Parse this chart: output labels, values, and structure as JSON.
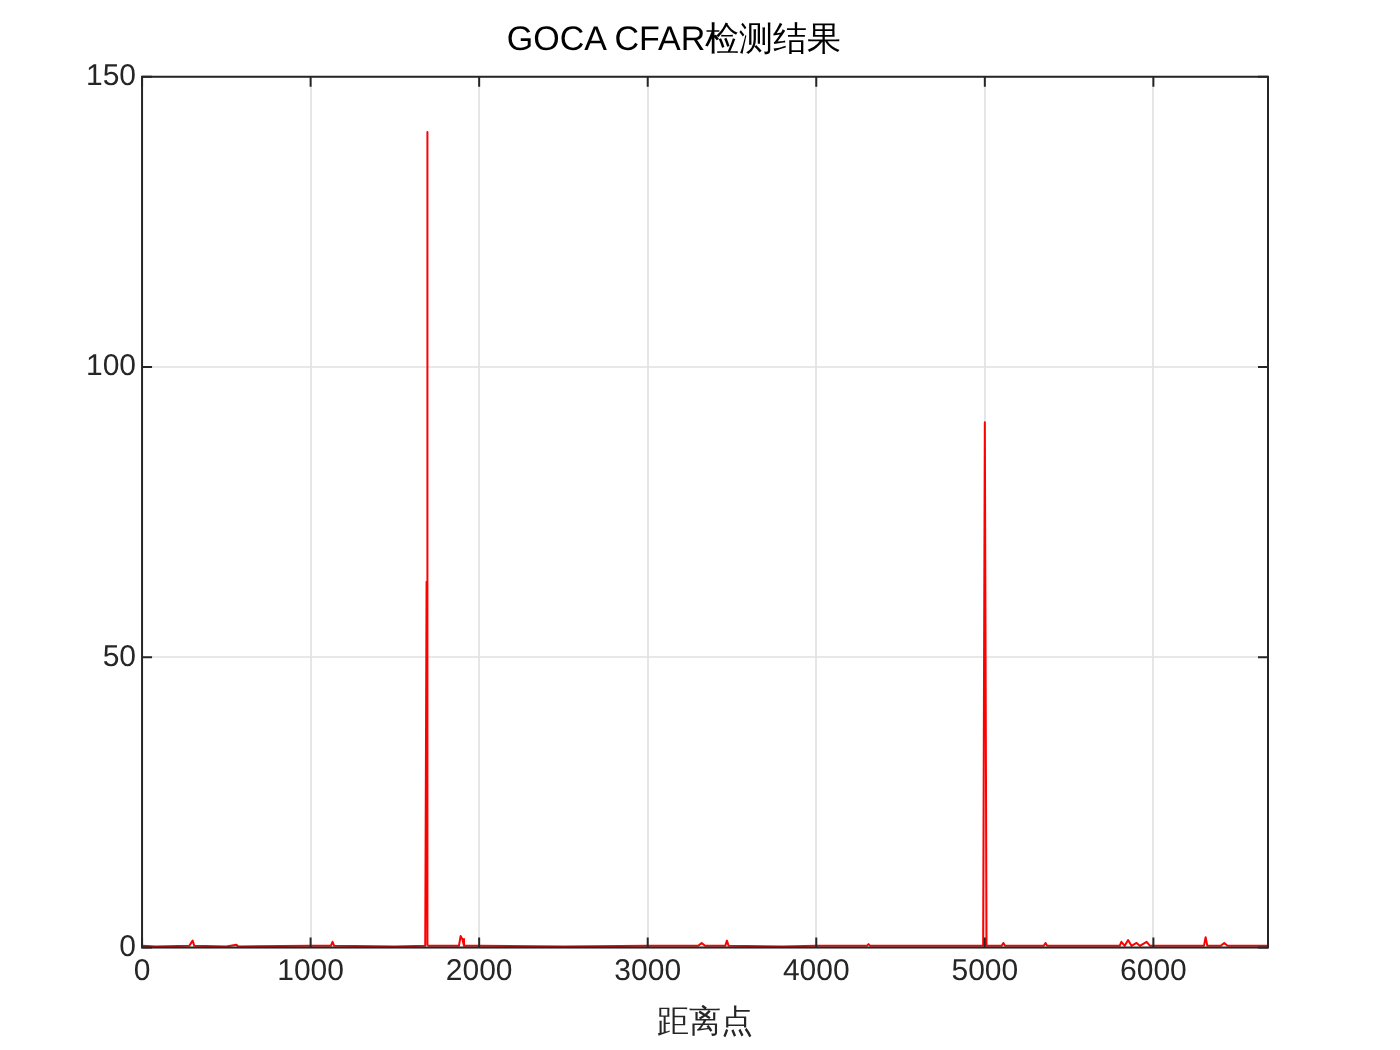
{
  "chart_data": {
    "type": "line",
    "title": "GOCA CFAR检测结果",
    "xlabel": "距离点",
    "series": [
      {
        "color": "#ff0000",
        "x": [
          0,
          80,
          280,
          300,
          310,
          500,
          560,
          570,
          1000,
          1120,
          1130,
          1140,
          1500,
          1680,
          1688,
          1692,
          1694,
          1700,
          1880,
          1890,
          1900,
          1910,
          2000,
          2500,
          3000,
          3300,
          3320,
          3340,
          3460,
          3470,
          3480,
          3800,
          4000,
          4300,
          4310,
          4320,
          4990,
          5000,
          5010,
          5100,
          5110,
          5120,
          5350,
          5360,
          5370,
          5800,
          5810,
          5830,
          5850,
          5870,
          5900,
          5920,
          5960,
          5980,
          6300,
          6310,
          6320,
          6400,
          6420,
          6440,
          6680
        ],
        "values": [
          0.3,
          0.2,
          0.3,
          1.2,
          0.3,
          0.2,
          0.5,
          0.2,
          0.3,
          0.3,
          1.0,
          0.3,
          0.2,
          0.3,
          63,
          140.5,
          0.5,
          0.3,
          0.3,
          2.0,
          1.5,
          0.3,
          0.3,
          0.2,
          0.3,
          0.3,
          0.8,
          0.3,
          0.3,
          1.2,
          0.3,
          0.2,
          0.3,
          0.3,
          0.6,
          0.3,
          0.3,
          90.5,
          0.3,
          0.3,
          0.8,
          0.3,
          0.3,
          0.8,
          0.3,
          0.3,
          1.0,
          0.3,
          1.3,
          0.3,
          0.8,
          0.3,
          1.0,
          0.3,
          0.3,
          1.8,
          0.3,
          0.3,
          0.8,
          0.3,
          0.3
        ]
      }
    ],
    "xlim": [
      0,
      6680
    ],
    "xticks": [
      0,
      1000,
      2000,
      3000,
      4000,
      5000,
      6000
    ],
    "ylim": [
      0,
      150
    ],
    "yticks": [
      0,
      50,
      100,
      150
    ],
    "grid": true,
    "legend": false,
    "marker": "none",
    "line_style": "solid"
  }
}
